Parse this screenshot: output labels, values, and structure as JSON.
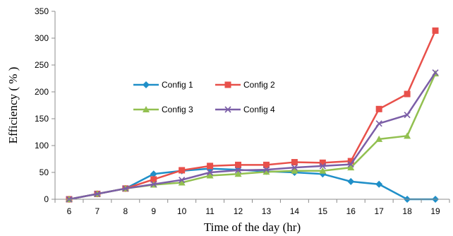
{
  "chart_data": {
    "type": "line",
    "title": "",
    "xlabel": "Time of the day (hr)",
    "ylabel": "Efficiency ( % )",
    "x": [
      6,
      7,
      8,
      9,
      10,
      11,
      12,
      13,
      14,
      15,
      16,
      17,
      18,
      19
    ],
    "ylim": [
      0,
      350
    ],
    "yticks": [
      0,
      50,
      100,
      150,
      200,
      250,
      300,
      350
    ],
    "grid": false,
    "legend_position": "inside-left",
    "series": [
      {
        "name": "Config 1",
        "color": "#1f8fc8",
        "marker": "diamond",
        "values": [
          0,
          10,
          20,
          47,
          53,
          57,
          55,
          52,
          50,
          47,
          33,
          28,
          0,
          0
        ]
      },
      {
        "name": "Config 2",
        "color": "#e8504a",
        "marker": "square",
        "values": [
          0,
          10,
          20,
          37,
          54,
          62,
          64,
          64,
          69,
          68,
          71,
          168,
          196,
          314
        ]
      },
      {
        "name": "Config 3",
        "color": "#92c050",
        "marker": "triangle",
        "values": [
          0,
          10,
          20,
          27,
          31,
          44,
          47,
          51,
          53,
          53,
          59,
          112,
          118,
          234
        ]
      },
      {
        "name": "Config 4",
        "color": "#7b5ea7",
        "marker": "x",
        "values": [
          0,
          10,
          20,
          28,
          36,
          50,
          54,
          55,
          59,
          62,
          65,
          141,
          157,
          236
        ]
      }
    ]
  }
}
